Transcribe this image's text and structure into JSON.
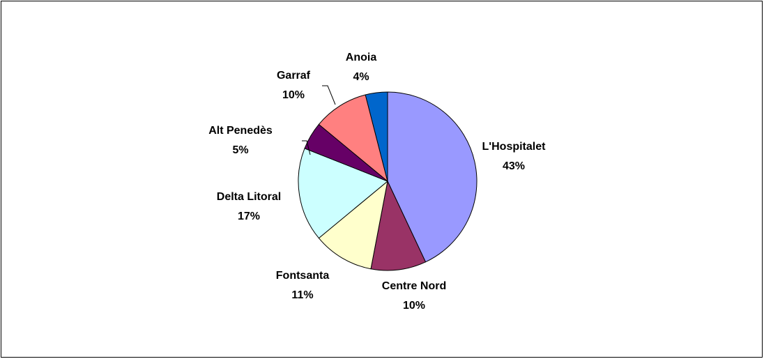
{
  "chart_data": {
    "type": "pie",
    "categories": [
      "L'Hospitalet",
      "Centre Nord",
      "Fontsanta",
      "Delta Litoral",
      "Alt Penedès",
      "Garraf",
      "Anoia"
    ],
    "values": [
      43,
      10,
      11,
      17,
      5,
      10,
      4
    ],
    "value_labels": [
      "43%",
      "10%",
      "11%",
      "17%",
      "5%",
      "10%",
      "4%"
    ],
    "colors": [
      "#9999ff",
      "#993366",
      "#ffffcc",
      "#ccffff",
      "#660066",
      "#ff8080",
      "#0066cc"
    ]
  }
}
